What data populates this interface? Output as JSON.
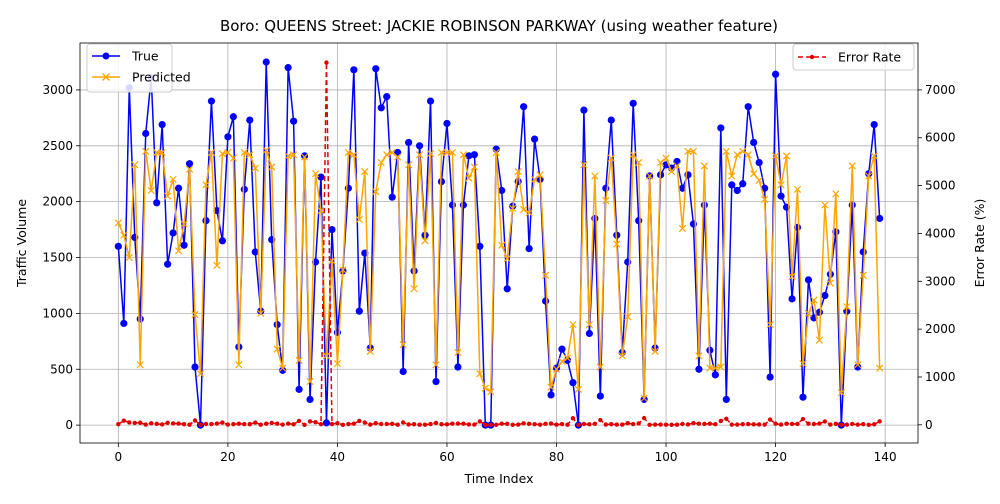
{
  "chart_data": {
    "type": "line",
    "title": "Boro: QUEENS Street: JACKIE ROBINSON PARKWAY (using weather feature)",
    "xlabel": "Time Index",
    "ylabel": "Traffic Volume",
    "y2label": "Error Rate (%)",
    "xlim": [
      -7,
      146
    ],
    "ylim": [
      -160,
      3420
    ],
    "y2lim": [
      -380,
      7980
    ],
    "xticks": [
      0,
      20,
      40,
      60,
      80,
      100,
      120,
      140
    ],
    "yticks": [
      0,
      500,
      1000,
      1500,
      2000,
      2500,
      3000
    ],
    "y2ticks": [
      0,
      1000,
      2000,
      3000,
      4000,
      5000,
      6000,
      7000
    ],
    "grid": true,
    "series": [
      {
        "name": "True",
        "axis": "left",
        "color": "#0000ff",
        "marker": "circle",
        "linestyle": "solid",
        "values": [
          1600,
          910,
          3020,
          1680,
          950,
          2610,
          3110,
          1990,
          2690,
          1440,
          1720,
          2120,
          1610,
          2340,
          520,
          0,
          1830,
          2900,
          1920,
          1650,
          2580,
          2760,
          700,
          2110,
          2730,
          1550,
          1020,
          3250,
          1660,
          900,
          490,
          3200,
          2720,
          320,
          2410,
          230,
          1460,
          2220,
          20,
          1750,
          830,
          1380,
          2120,
          3180,
          1020,
          1540,
          690,
          3190,
          2840,
          2940,
          2040,
          2440,
          480,
          2530,
          1380,
          2500,
          1700,
          2900,
          390,
          2180,
          2700,
          1970,
          520,
          1970,
          2410,
          2420,
          1600,
          0,
          0,
          2470,
          2100,
          1220,
          1960,
          2180,
          2850,
          1580,
          2560,
          2200,
          1110,
          270,
          510,
          680,
          580,
          380,
          0,
          2820,
          820,
          1850,
          260,
          2120,
          2730,
          1700,
          650,
          1460,
          2880,
          1830,
          230,
          2230,
          690,
          2240,
          2330,
          2300,
          2360,
          2120,
          2240,
          1800,
          500,
          1970,
          670,
          450,
          2660,
          230,
          2150,
          2100,
          2160,
          2850,
          2530,
          2350,
          2120,
          430,
          3140,
          2050,
          1950,
          1130,
          1770,
          250,
          1300,
          960,
          1010,
          1160,
          1350,
          1730,
          0,
          1020,
          1970,
          520,
          1550,
          2250,
          2690,
          1850
        ]
      },
      {
        "name": "Predicted",
        "axis": "left",
        "color": "#ffa500",
        "marker": "x",
        "linestyle": "solid",
        "values": [
          1810,
          1700,
          1500,
          2330,
          540,
          2450,
          2100,
          2440,
          2440,
          2050,
          2200,
          1560,
          1800,
          2290,
          990,
          460,
          2150,
          2440,
          1430,
          2430,
          2440,
          2390,
          540,
          2440,
          2420,
          2300,
          1000,
          2460,
          2310,
          680,
          510,
          2410,
          2420,
          580,
          2400,
          390,
          2250,
          1920,
          620,
          1470,
          550,
          1390,
          2440,
          2420,
          1840,
          2270,
          660,
          2090,
          2350,
          2420,
          2440,
          2400,
          720,
          2330,
          1220,
          2420,
          1650,
          2430,
          540,
          2440,
          2440,
          2440,
          650,
          2420,
          2210,
          2310,
          460,
          330,
          300,
          2440,
          1610,
          1490,
          1940,
          2270,
          1930,
          1900,
          2200,
          2240,
          1340,
          340,
          500,
          570,
          600,
          900,
          320,
          2330,
          900,
          2230,
          520,
          2010,
          2390,
          1620,
          620,
          970,
          2420,
          2350,
          240,
          2230,
          660,
          2350,
          2390,
          2270,
          2320,
          1760,
          2450,
          2450,
          620,
          2320,
          510,
          510,
          520,
          2450,
          2230,
          2420,
          2450,
          2420,
          2250,
          2190,
          2020,
          900,
          2410,
          2150,
          2410,
          1330,
          2110,
          550,
          1000,
          1120,
          760,
          1970,
          1270,
          2070,
          290,
          1060,
          2320,
          540,
          1340,
          2230,
          2410,
          510
        ]
      },
      {
        "name": "Error Rate",
        "axis": "right",
        "color": "#e00000",
        "marker": "dot",
        "linestyle": "dashed",
        "values": [
          13,
          87,
          50,
          39,
          43,
          6,
          32,
          22,
          9,
          42,
          28,
          26,
          12,
          2,
          90,
          0,
          17,
          16,
          26,
          47,
          5,
          13,
          23,
          16,
          12,
          48,
          2,
          24,
          39,
          24,
          4,
          25,
          11,
          81,
          0,
          70,
          54,
          14,
          7570,
          16,
          34,
          1,
          15,
          24,
          80,
          47,
          4,
          34,
          17,
          18,
          20,
          2,
          50,
          8,
          12,
          3,
          3,
          16,
          38,
          12,
          10,
          24,
          25,
          23,
          8,
          5,
          71,
          0,
          0,
          1,
          23,
          22,
          1,
          4,
          32,
          20,
          14,
          2,
          21,
          26,
          2,
          16,
          3,
          137,
          0,
          17,
          10,
          20,
          100,
          5,
          12,
          5,
          5,
          34,
          16,
          28,
          140,
          0,
          4,
          5,
          3,
          1,
          2,
          17,
          9,
          36,
          24,
          18,
          24,
          13,
          80,
          126,
          4,
          6,
          12,
          15,
          11,
          7,
          5,
          109,
          23,
          5,
          24,
          18,
          19,
          120,
          23,
          17,
          25,
          70,
          6,
          20,
          0,
          4,
          18,
          4,
          14,
          1,
          10,
          72
        ],
        "spike": {
          "index": 38,
          "value": 7570
        }
      }
    ],
    "legend_left": {
      "position": "upper-left",
      "entries": [
        "True",
        "Predicted"
      ]
    },
    "legend_right": {
      "position": "upper-right",
      "entries": [
        "Error Rate"
      ]
    }
  }
}
